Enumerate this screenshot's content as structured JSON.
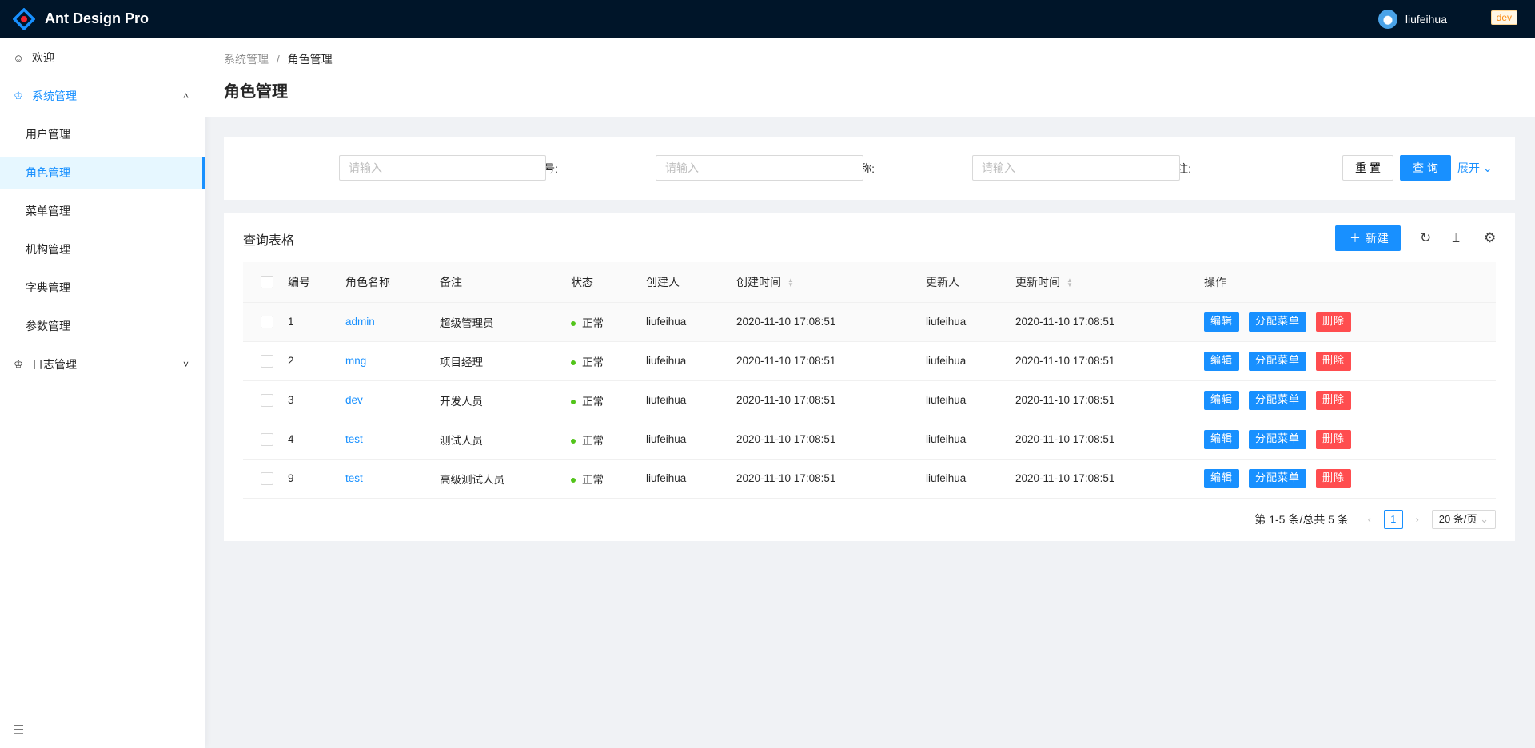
{
  "app": {
    "brand": "Ant Design Pro",
    "user": "liufeihua",
    "env_tag": "dev"
  },
  "sidebar": {
    "items": [
      {
        "label": "欢迎",
        "icon": "smile-icon"
      },
      {
        "label": "系统管理",
        "icon": "crown-icon",
        "expanded": true
      },
      {
        "label": "用户管理"
      },
      {
        "label": "角色管理",
        "active": true
      },
      {
        "label": "菜单管理"
      },
      {
        "label": "机构管理"
      },
      {
        "label": "字典管理"
      },
      {
        "label": "参数管理"
      },
      {
        "label": "日志管理",
        "icon": "crown-icon",
        "expanded": false
      }
    ]
  },
  "breadcrumb": [
    "系统管理",
    "/",
    "角色管理"
  ],
  "page_title": "角色管理",
  "search": {
    "fields": [
      {
        "label": "编号:",
        "placeholder": "请输入"
      },
      {
        "label": "角色名称:",
        "placeholder": "请输入"
      },
      {
        "label": "备注:",
        "placeholder": "请输入"
      }
    ],
    "reset": "重置",
    "query": "查询",
    "expand": "展开"
  },
  "table": {
    "title": "查询表格",
    "new_label": "新建",
    "columns": [
      "编号",
      "角色名称",
      "备注",
      "状态",
      "创建人",
      "创建时间",
      "更新人",
      "更新时间",
      "操作"
    ],
    "rows": [
      [
        "1",
        "admin",
        "超级管理员",
        "正常",
        "liufeihua",
        "2020-11-10 17:08:51",
        "liufeihua",
        "2020-11-10 17:08:51"
      ],
      [
        "2",
        "mng",
        "项目经理",
        "正常",
        "liufeihua",
        "2020-11-10 17:08:51",
        "liufeihua",
        "2020-11-10 17:08:51"
      ],
      [
        "3",
        "dev",
        "开发人员",
        "正常",
        "liufeihua",
        "2020-11-10 17:08:51",
        "liufeihua",
        "2020-11-10 17:08:51"
      ],
      [
        "4",
        "test",
        "测试人员",
        "正常",
        "liufeihua",
        "2020-11-10 17:08:51",
        "liufeihua",
        "2020-11-10 17:08:51"
      ],
      [
        "9",
        "test",
        "高级测试人员",
        "正常",
        "liufeihua",
        "2020-11-10 17:08:51",
        "liufeihua",
        "2020-11-10 17:08:51"
      ]
    ],
    "actions": [
      "编辑",
      "分配菜单",
      "删除"
    ]
  },
  "pagination": {
    "summary": "第 1-5 条/总共 5 条",
    "current": "1",
    "page_size": "20 条/页"
  },
  "colors": {
    "primary": "#1890ff",
    "danger": "#ff4d4f",
    "header": "#001529",
    "status_ok": "#52c41a"
  }
}
